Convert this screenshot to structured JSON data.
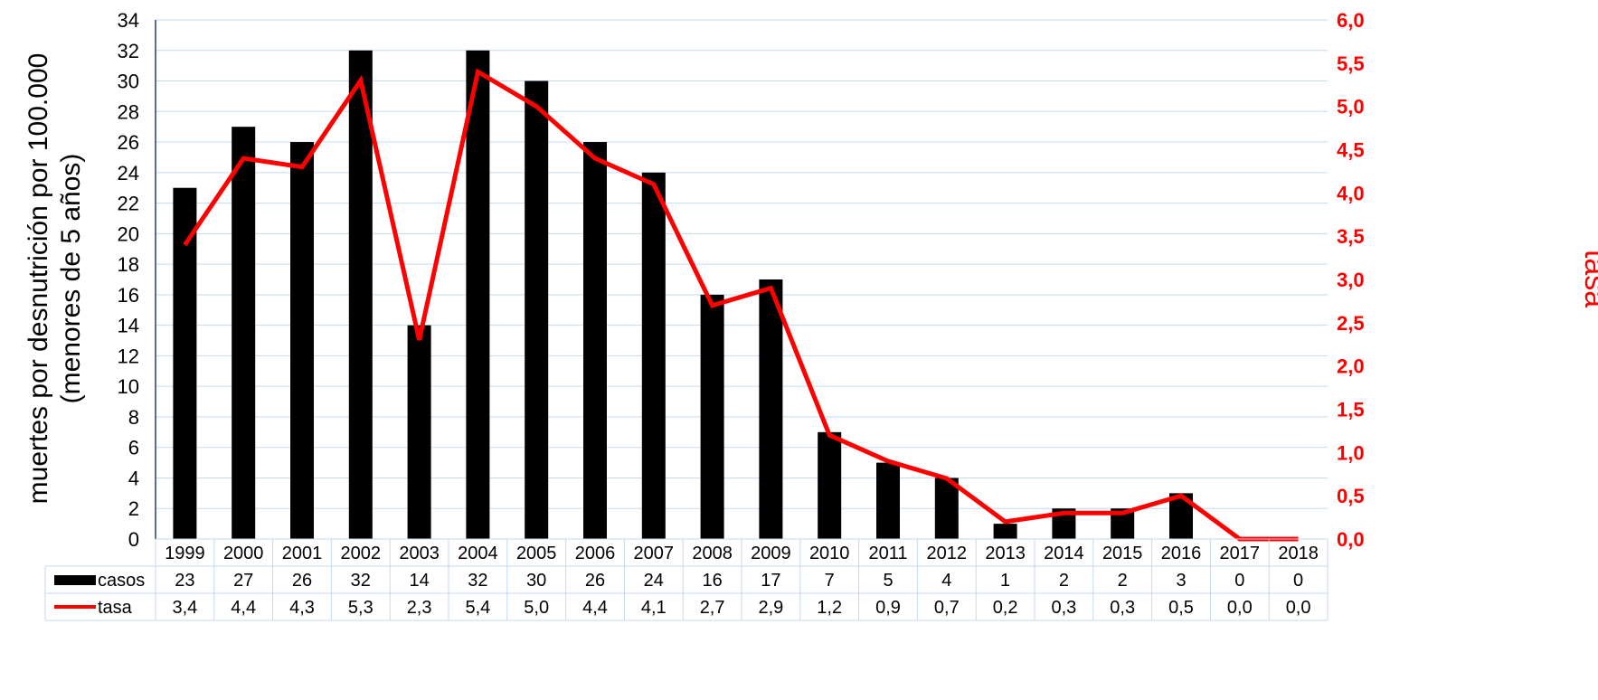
{
  "chart_data": {
    "type": "bar",
    "categories": [
      "1999",
      "2000",
      "2001",
      "2002",
      "2003",
      "2004",
      "2005",
      "2006",
      "2007",
      "2008",
      "2009",
      "2010",
      "2011",
      "2012",
      "2013",
      "2014",
      "2015",
      "2016",
      "2017",
      "2018"
    ],
    "series": [
      {
        "name": "casos",
        "type": "bar",
        "axis": "left",
        "color": "#000000",
        "values": [
          23,
          27,
          26,
          32,
          14,
          32,
          30,
          26,
          24,
          16,
          17,
          7,
          5,
          4,
          1,
          2,
          2,
          3,
          0,
          0
        ],
        "labels": [
          "23",
          "27",
          "26",
          "32",
          "14",
          "32",
          "30",
          "26",
          "24",
          "16",
          "17",
          "7",
          "5",
          "4",
          "1",
          "2",
          "2",
          "3",
          "0",
          "0"
        ]
      },
      {
        "name": "tasa",
        "type": "line",
        "axis": "right",
        "color": "#ff0000",
        "values": [
          3.4,
          4.4,
          4.3,
          5.3,
          2.3,
          5.4,
          5.0,
          4.4,
          4.1,
          2.7,
          2.9,
          1.2,
          0.9,
          0.7,
          0.2,
          0.3,
          0.3,
          0.5,
          0.0,
          0.0
        ],
        "labels": [
          "3,4",
          "4,4",
          "4,3",
          "5,3",
          "2,3",
          "5,4",
          "5,0",
          "4,4",
          "4,1",
          "2,7",
          "2,9",
          "1,2",
          "0,9",
          "0,7",
          "0,2",
          "0,3",
          "0,3",
          "0,5",
          "0,0",
          "0,0"
        ]
      }
    ],
    "ylabel_left": [
      "muertes por desnutrición por 100.000",
      "(menores de 5 años)"
    ],
    "ylabel_right": "tasa",
    "ylim_left": [
      0,
      34
    ],
    "ylim_right": [
      0,
      6.0
    ],
    "yticks_left": [
      "0",
      "2",
      "4",
      "6",
      "8",
      "10",
      "12",
      "14",
      "16",
      "18",
      "20",
      "22",
      "24",
      "26",
      "28",
      "30",
      "32",
      "34"
    ],
    "yticks_right": [
      "0,0",
      "0,5",
      "1,0",
      "1,5",
      "2,0",
      "2,5",
      "3,0",
      "3,5",
      "4,0",
      "4,5",
      "5,0",
      "5,5",
      "6,0"
    ],
    "grid": true,
    "legend": "data-table",
    "colors": {
      "grid": "#c5d9f1",
      "axis_left": "#1f3f7f",
      "bars": "#000000",
      "line": "#ff0000",
      "table_border": "#c5d9f1"
    }
  }
}
